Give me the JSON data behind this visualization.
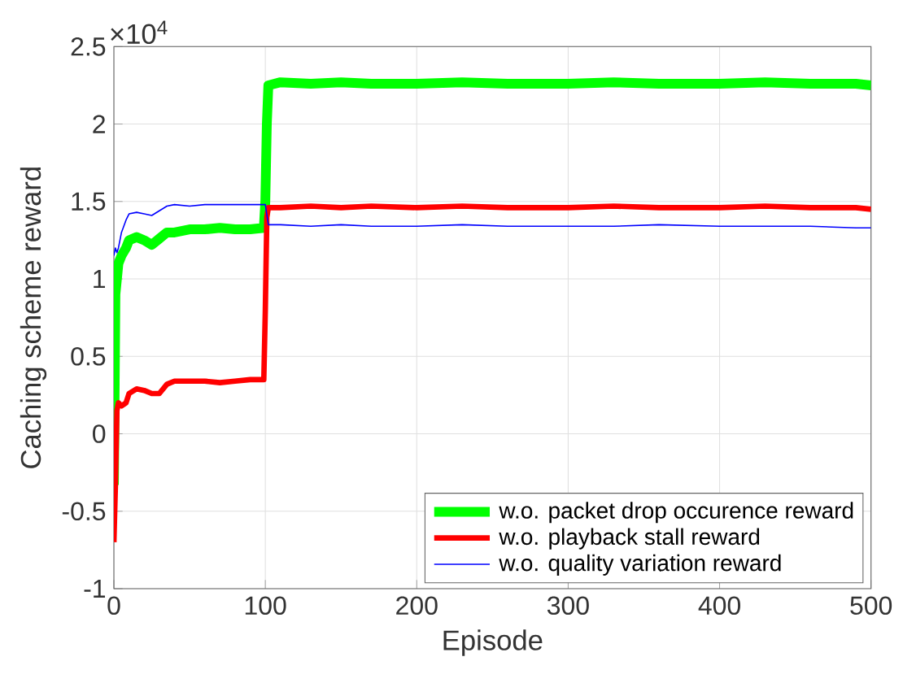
{
  "chart_data": {
    "type": "line",
    "xlabel": "Episode",
    "ylabel": "Caching scheme reward",
    "annotations": [
      "×10$^{4}$"
    ],
    "xlim": [
      0,
      500
    ],
    "ylim": [
      -1,
      2.5
    ],
    "xticks": [
      0,
      100,
      200,
      300,
      400,
      500
    ],
    "yticks": [
      -1,
      -0.5,
      0,
      0.5,
      1,
      1.5,
      2,
      2.5
    ],
    "grid": true,
    "legend": "bottom right",
    "series": [
      {
        "name": "w.o. packet drop occurence reward",
        "color": "#00ff00",
        "x": [
          0,
          1,
          2,
          3,
          5,
          8,
          10,
          15,
          20,
          25,
          30,
          35,
          40,
          50,
          60,
          70,
          80,
          90,
          99,
          100,
          101,
          102,
          110,
          130,
          150,
          170,
          200,
          230,
          260,
          300,
          330,
          360,
          400,
          430,
          460,
          490,
          500
        ],
        "values": [
          -0.33,
          0.9,
          1.0,
          1.1,
          1.15,
          1.2,
          1.25,
          1.27,
          1.25,
          1.22,
          1.26,
          1.3,
          1.3,
          1.32,
          1.32,
          1.33,
          1.32,
          1.32,
          1.33,
          1.5,
          2.0,
          2.25,
          2.27,
          2.26,
          2.27,
          2.26,
          2.26,
          2.27,
          2.26,
          2.26,
          2.27,
          2.26,
          2.26,
          2.27,
          2.26,
          2.26,
          2.25
        ]
      },
      {
        "name": "w.o. playback stall reward",
        "color": "#ff0000",
        "x": [
          0,
          1,
          2,
          3,
          5,
          8,
          10,
          15,
          20,
          25,
          30,
          35,
          40,
          50,
          60,
          70,
          80,
          90,
          99,
          100,
          101,
          102,
          110,
          130,
          150,
          170,
          200,
          230,
          260,
          300,
          330,
          360,
          400,
          430,
          460,
          490,
          500
        ],
        "values": [
          -0.7,
          -0.33,
          0.15,
          0.2,
          0.18,
          0.2,
          0.26,
          0.29,
          0.28,
          0.26,
          0.26,
          0.32,
          0.34,
          0.34,
          0.34,
          0.33,
          0.34,
          0.35,
          0.35,
          0.8,
          1.4,
          1.46,
          1.46,
          1.47,
          1.46,
          1.47,
          1.46,
          1.47,
          1.46,
          1.46,
          1.47,
          1.46,
          1.46,
          1.47,
          1.46,
          1.46,
          1.45
        ]
      },
      {
        "name": "w.o. quality variation reward",
        "color": "#0000ff",
        "x": [
          0,
          1,
          2,
          3,
          5,
          8,
          10,
          15,
          20,
          25,
          30,
          35,
          40,
          50,
          60,
          70,
          80,
          90,
          100,
          102,
          110,
          130,
          150,
          170,
          200,
          230,
          260,
          300,
          330,
          360,
          400,
          430,
          460,
          490,
          500
        ],
        "values": [
          1.15,
          1.2,
          1.17,
          1.2,
          1.3,
          1.38,
          1.42,
          1.43,
          1.42,
          1.41,
          1.44,
          1.47,
          1.48,
          1.47,
          1.48,
          1.48,
          1.48,
          1.48,
          1.48,
          1.35,
          1.35,
          1.34,
          1.35,
          1.34,
          1.34,
          1.35,
          1.34,
          1.34,
          1.34,
          1.35,
          1.34,
          1.34,
          1.34,
          1.33,
          1.33
        ]
      }
    ]
  }
}
